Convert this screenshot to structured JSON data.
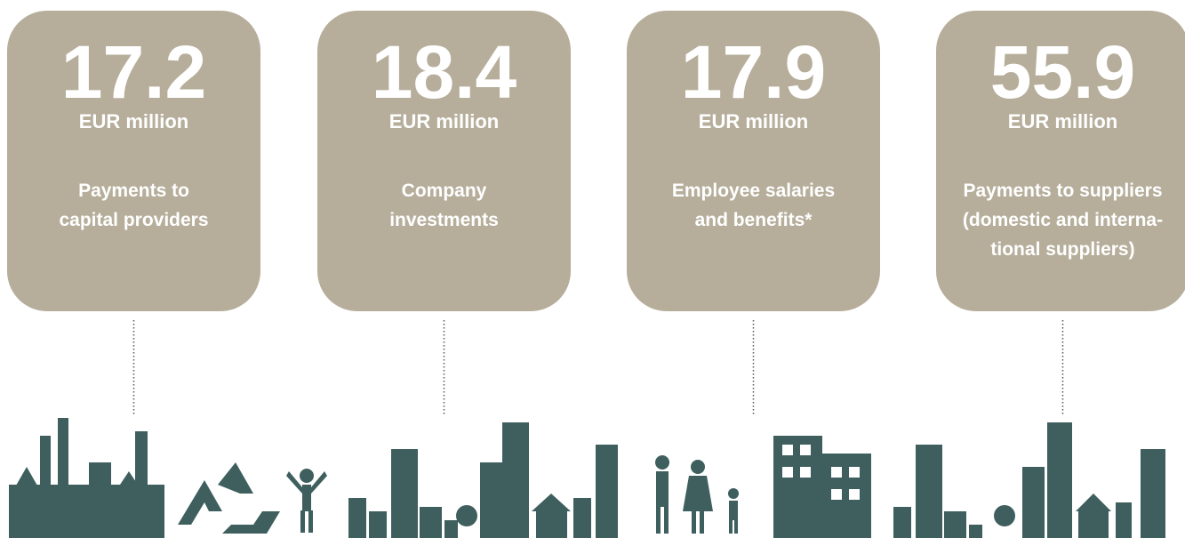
{
  "cards": [
    {
      "value": 17.2,
      "unit": "EUR million",
      "label_lines": [
        "Payments to",
        "capital providers"
      ]
    },
    {
      "value": 18.4,
      "unit": "EUR million",
      "label_lines": [
        "Company",
        "investments"
      ]
    },
    {
      "value": 17.9,
      "unit": "EUR million",
      "label_lines": [
        "Employee salaries",
        "and benefits*"
      ]
    },
    {
      "value": 55.9,
      "unit": "EUR million",
      "label_lines": [
        "Payments to suppliers",
        "(domestic and interna-",
        "tional suppliers)"
      ]
    }
  ]
}
